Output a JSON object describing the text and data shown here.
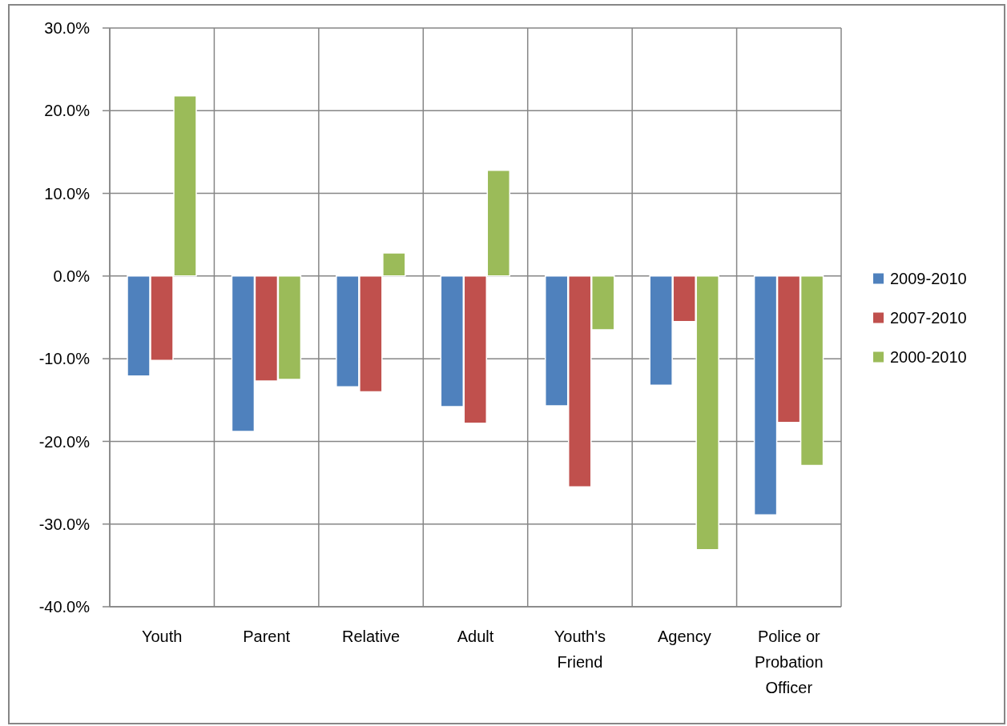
{
  "chart_data": {
    "type": "bar",
    "categories": [
      "Youth",
      "Parent",
      "Relative",
      "Adult",
      "Youth's Friend",
      "Agency",
      "Police or Probation Officer"
    ],
    "series": [
      {
        "name": "2009-2010",
        "color": "#4f81bd",
        "values": [
          -12.1,
          -18.8,
          -13.4,
          -15.8,
          -15.7,
          -13.2,
          -28.9
        ]
      },
      {
        "name": "2007-2010",
        "color": "#c0504d",
        "values": [
          -10.2,
          -12.7,
          -14.0,
          -17.8,
          -25.5,
          -5.5,
          -17.7
        ]
      },
      {
        "name": "2000-2010",
        "color": "#9bbb59",
        "values": [
          21.8,
          -12.5,
          2.8,
          12.8,
          -6.5,
          -33.1,
          -22.9
        ]
      }
    ],
    "ylim": [
      -40,
      30
    ],
    "yticks": [
      {
        "value": -40,
        "label": "-40.0%"
      },
      {
        "value": -30,
        "label": "-30.0%"
      },
      {
        "value": -20,
        "label": "-20.0%"
      },
      {
        "value": -10,
        "label": "-10.0%"
      },
      {
        "value": 0,
        "label": "0.0%"
      },
      {
        "value": 10,
        "label": "10.0%"
      },
      {
        "value": 20,
        "label": "20.0%"
      },
      {
        "value": 30,
        "label": "30.0%"
      }
    ],
    "grid": true,
    "legend": "right"
  }
}
